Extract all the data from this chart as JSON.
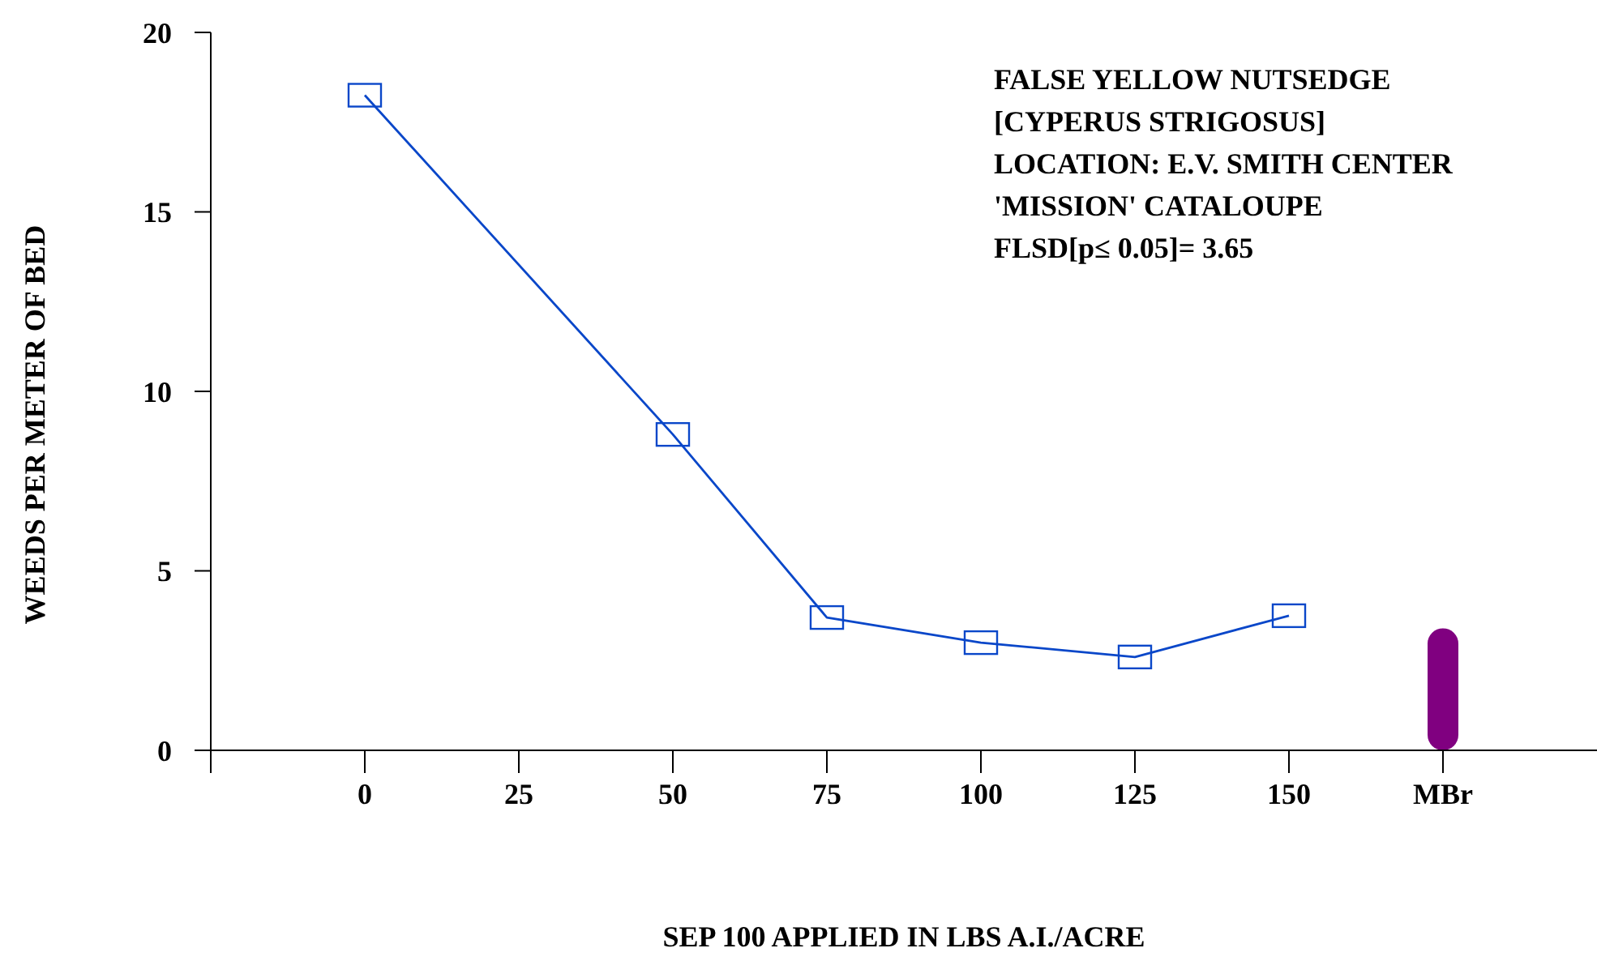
{
  "chart_data": {
    "type": "line",
    "xlabel": "SEP 100 APPLIED IN LBS A.I./ACRE",
    "ylabel": "WEEDS PER METER OF BED",
    "annotations": [
      "FALSE YELLOW NUTSEDGE",
      "[CYPERUS STRIGOSUS]",
      "LOCATION: E.V. SMITH CENTER",
      "'MISSION' CATALOUPE",
      "FLSD[p≤ 0.05]= 3.65"
    ],
    "series": [
      {
        "color": "#0a47c9",
        "x": [
          0,
          50,
          75,
          100,
          125,
          150
        ],
        "values": [
          18.25,
          8.8,
          3.7,
          3.0,
          2.6,
          3.75
        ],
        "marker": "square",
        "line_style": "solid"
      },
      {
        "type": "bar",
        "color": "#800080",
        "x": [
          175
        ],
        "values": [
          3.4
        ]
      }
    ],
    "xlim": [
      -25,
      200
    ],
    "xticks": [
      {
        "value": -25,
        "label": null
      },
      0,
      25,
      50,
      75,
      100,
      125,
      150,
      {
        "value": 175,
        "label": "MBr"
      }
    ],
    "ylim": [
      0,
      20
    ],
    "yticks": [
      0,
      5,
      10,
      15,
      20
    ],
    "grid": false,
    "legend": false
  }
}
